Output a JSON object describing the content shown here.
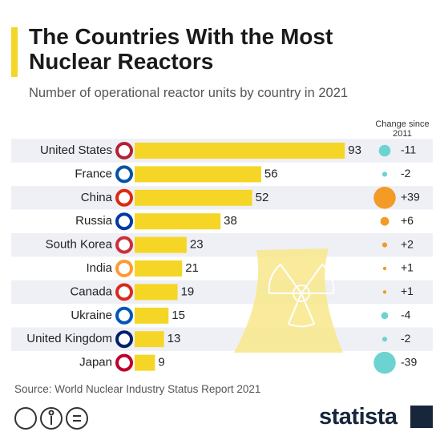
{
  "chart_data": {
    "type": "bar",
    "orientation": "horizontal",
    "title": "The Countries With the Most Nuclear Reactors",
    "subtitle": "Number of operational reactor units by country in 2021",
    "categories": [
      "United States",
      "France",
      "China",
      "Russia",
      "South Korea",
      "India",
      "Canada",
      "Ukraine",
      "United Kingdom",
      "Japan"
    ],
    "values": [
      93,
      56,
      52,
      38,
      23,
      21,
      19,
      15,
      13,
      9
    ],
    "color": "#f5d626",
    "change": {
      "title": "Change since 2011",
      "values": [
        -11,
        -2,
        39,
        6,
        2,
        1,
        1,
        -4,
        -2,
        -39
      ],
      "value_labels": [
        "-11",
        "-2",
        "+39",
        "+6",
        "+2",
        "+1",
        "+1",
        "-4",
        "-2",
        "-39"
      ],
      "positive_color": "#f39a27",
      "negative_color": "#6dd3d0"
    },
    "source": "Source: World Nuclear Industry Status Report 2021"
  },
  "logo": "statista"
}
